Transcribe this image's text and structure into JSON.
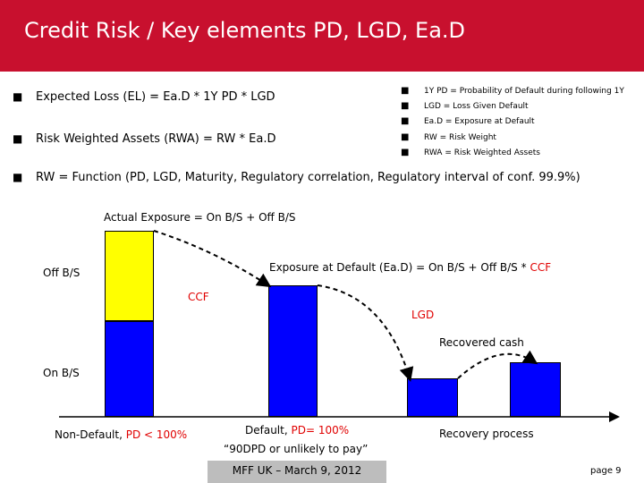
{
  "header": {
    "title": "Credit Risk / Key elements PD, LGD, Ea.D",
    "bg_color": "#c8102e"
  },
  "bullets": [
    "Expected Loss (EL) = Ea.D * 1Y PD * LGD",
    "Risk Weighted Assets (RWA) = RW * Ea.D",
    "RW = Function (PD, LGD, Maturity, Regulatory correlation, Regulatory interval of conf. 99.9%)"
  ],
  "definitions": [
    "1Y PD = Probability of Default during following 1Y",
    "LGD = Loss Given Default",
    "Ea.D = Exposure at Default",
    "RW = Risk Weight",
    "RWA = Risk Weighted Assets"
  ],
  "diagram": {
    "actual_exposure": "Actual Exposure = On B/S + Off B/S",
    "off_bs": "Off B/S",
    "on_bs": "On B/S",
    "ead_label": "Exposure at Default (Ea.D) = On B/S + Off B/S * ",
    "ead_ccf": "CCF",
    "ccf": "CCF",
    "lgd": "LGD",
    "recovered_cash": "Recovered cash",
    "col1_label": "Non-Default, ",
    "col1_red": "PD < 100%",
    "col2_label1": "Default, ",
    "col2_red": "PD= 100%",
    "col2_label2": "“90DPD or unlikely to pay”",
    "col3_label": "Recovery process"
  },
  "colors": {
    "yellow": "#ffff00",
    "blue": "#0000ff",
    "red": "#e00000"
  },
  "footer": {
    "text": "MFF UK – March 9, 2012",
    "page": "page 9"
  }
}
